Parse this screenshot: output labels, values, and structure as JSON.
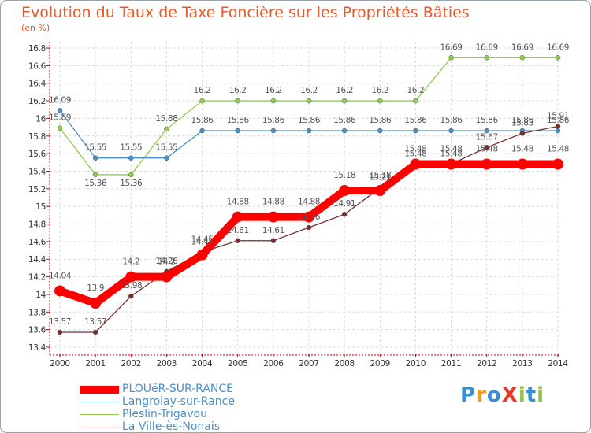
{
  "title": "Evolution du Taux de Taxe Foncière sur les Propriétés Bâties",
  "unit_label": "(en %)",
  "logo": {
    "text": "ProXiti",
    "letter_colors": [
      "#3a8fd0",
      "#f29a1f",
      "#3a8fd0",
      "#e63a2a",
      "#8fc43f",
      "#3a8fd0",
      "#8fc43f"
    ]
  },
  "chart_data": {
    "type": "line",
    "title": "Evolution du Taux de Taxe Foncière sur les Propriétés Bâties",
    "ylabel": "(en %)",
    "xlabel": "",
    "ylim": [
      13.4,
      16.8
    ],
    "yticks": [
      "13.4",
      "13.6",
      "13.8",
      "14",
      "14.2",
      "14.4",
      "14.6",
      "14.8",
      "15",
      "15.2",
      "15.4",
      "15.6",
      "15.8",
      "16",
      "16.2",
      "16.4",
      "16.6",
      "16.8"
    ],
    "categories": [
      "2000",
      "2001",
      "2002",
      "2003",
      "2004",
      "2005",
      "2006",
      "2007",
      "2008",
      "2009",
      "2010",
      "2011",
      "2012",
      "2013",
      "2014"
    ],
    "series": [
      {
        "name": "Langrolay-sur-Rance",
        "color": "#4a90c8",
        "values": [
          16.09,
          15.55,
          15.55,
          15.55,
          15.86,
          15.86,
          15.86,
          15.86,
          15.86,
          15.86,
          15.86,
          15.86,
          15.86,
          15.86,
          15.86
        ],
        "labels": [
          "16.09",
          "15.55",
          "15.55",
          "15.55",
          "15.86",
          "15.86",
          "15.86",
          "15.86",
          "15.86",
          "15.86",
          "15.86",
          "15.86",
          "15.86",
          "15.86",
          "15.86"
        ]
      },
      {
        "name": "Pleslin-Trigavou",
        "color": "#8fcf4c",
        "values": [
          15.89,
          15.36,
          15.36,
          15.88,
          16.2,
          16.2,
          16.2,
          16.2,
          16.2,
          16.2,
          16.2,
          16.69,
          16.69,
          16.69,
          16.69
        ],
        "labels": [
          "15.89",
          "15.36",
          "15.36",
          "15.88",
          "16.2",
          "16.2",
          "16.2",
          "16.2",
          "16.2",
          "16.2",
          "16.2",
          "16.69",
          "16.69",
          "16.69",
          "16.69"
        ]
      },
      {
        "name": "La Ville-ès-Nonais",
        "color": "#7a2e2e",
        "values": [
          13.57,
          13.57,
          13.98,
          14.26,
          14.48,
          14.61,
          14.61,
          14.76,
          14.91,
          15.21,
          15.48,
          15.48,
          15.67,
          15.83,
          15.91
        ],
        "labels": [
          "13.57",
          "13.57",
          "13.98",
          "14.26",
          "14.48",
          "14.61",
          "14.61",
          "14.76",
          "14.91",
          "15.21",
          "15.48",
          "15.48",
          "15.67",
          "15.83",
          "15.91"
        ]
      },
      {
        "name": "PLOUëR-SUR-RANCE",
        "color": "#ff0000",
        "values": [
          14.04,
          13.9,
          14.2,
          14.2,
          14.45,
          14.88,
          14.88,
          14.88,
          15.18,
          15.18,
          15.48,
          15.48,
          15.48,
          15.48,
          15.48
        ],
        "labels": [
          "14.04",
          "13.9",
          "14.2",
          "14.2",
          "14.45",
          "14.88",
          "14.88",
          "14.88",
          "15.18",
          "15.18",
          "15.48",
          "15.48",
          "15.48",
          "15.48",
          "15.48"
        ]
      }
    ],
    "legend": [
      {
        "name": "PLOUëR-SUR-RANCE",
        "color": "#ff0000",
        "text_color": "#4a90c8"
      },
      {
        "name": "Langrolay-sur-Rance",
        "color": "#4a90c8",
        "text_color": "#4a90c8"
      },
      {
        "name": "Pleslin-Trigavou",
        "color": "#8fcf4c",
        "text_color": "#4a90c8"
      },
      {
        "name": "La Ville-ès-Nonais",
        "color": "#7a2e2e",
        "text_color": "#4a90c8"
      }
    ],
    "legend_position": "bottom-left",
    "grid": true
  }
}
